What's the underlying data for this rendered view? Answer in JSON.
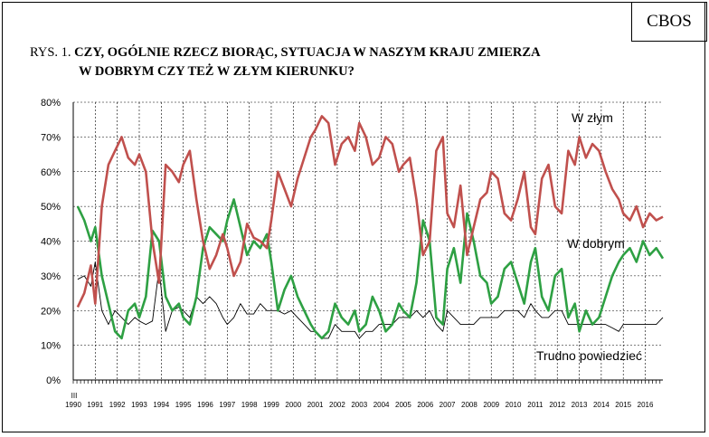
{
  "header": {
    "logo_text": "CBOS",
    "title_prefix": "RYS. 1.",
    "title_line1": "CZY, OGÓLNIE RZECZ BIORĄC, SYTUACJA W NASZYM KRAJU ZMIERZA",
    "title_line2": "W DOBRYM CZY TEŻ W ZŁYM KIERUNKU?"
  },
  "chart_data": {
    "type": "line",
    "title": "CZY, OGÓLNIE RZECZ BIORĄC, SYTUACJA W NASZYM KRAJU ZMIERZA W DOBRYM CZY TEŻ W ZŁYM KIERUNKU?",
    "xlabel": "",
    "ylabel": "",
    "ylim": [
      0,
      80
    ],
    "xlim": [
      1990,
      2016.8
    ],
    "grid": true,
    "y_ticks": [
      "0%",
      "10%",
      "20%",
      "30%",
      "40%",
      "50%",
      "60%",
      "70%",
      "80%"
    ],
    "x_start_label": "III",
    "x_ticks": [
      "1990",
      "1991",
      "1992",
      "1993",
      "1994",
      "1995",
      "1996",
      "1997",
      "1998",
      "1999",
      "2000",
      "2001",
      "2002",
      "2003",
      "2004",
      "2005",
      "2006",
      "2007",
      "2008",
      "2009",
      "2010",
      "2011",
      "2012",
      "2013",
      "2014",
      "2015",
      "2016"
    ],
    "colors": {
      "W złym": "#c0504d",
      "W dobrym": "#2ea043",
      "Trudno powiedzieć": "#000000"
    },
    "series": [
      {
        "name": "W złym",
        "x": [
          1990.2,
          1990.5,
          1990.8,
          1991.0,
          1991.3,
          1991.6,
          1991.9,
          1992.2,
          1992.5,
          1992.8,
          1993.0,
          1993.3,
          1993.6,
          1993.9,
          1994.2,
          1994.5,
          1994.8,
          1995.0,
          1995.3,
          1995.6,
          1995.9,
          1996.2,
          1996.5,
          1996.8,
          1997.0,
          1997.3,
          1997.6,
          1997.9,
          1998.2,
          1998.5,
          1998.8,
          1999.0,
          1999.3,
          1999.6,
          1999.9,
          2000.2,
          2000.5,
          2000.8,
          2001.0,
          2001.3,
          2001.6,
          2001.9,
          2002.2,
          2002.5,
          2002.8,
          2003.0,
          2003.3,
          2003.6,
          2003.9,
          2004.2,
          2004.5,
          2004.8,
          2005.0,
          2005.3,
          2005.6,
          2005.9,
          2006.2,
          2006.5,
          2006.8,
          2007.0,
          2007.3,
          2007.6,
          2007.9,
          2008.2,
          2008.5,
          2008.8,
          2009.0,
          2009.3,
          2009.6,
          2009.9,
          2010.2,
          2010.5,
          2010.8,
          2011.0,
          2011.3,
          2011.6,
          2011.9,
          2012.2,
          2012.5,
          2012.8,
          2013.0,
          2013.3,
          2013.6,
          2013.9,
          2014.2,
          2014.5,
          2014.8,
          2015.0,
          2015.3,
          2015.6,
          2015.9,
          2016.2,
          2016.5,
          2016.8
        ],
        "values": [
          21,
          25,
          33,
          22,
          50,
          62,
          66,
          70,
          64,
          62,
          65,
          60,
          40,
          28,
          62,
          60,
          57,
          62,
          66,
          52,
          40,
          32,
          36,
          42,
          38,
          30,
          34,
          45,
          41,
          40,
          38,
          46,
          60,
          55,
          50,
          58,
          64,
          70,
          72,
          76,
          74,
          62,
          68,
          70,
          66,
          74,
          70,
          62,
          64,
          70,
          68,
          60,
          62,
          64,
          52,
          36,
          40,
          66,
          70,
          48,
          44,
          56,
          36,
          44,
          52,
          54,
          60,
          58,
          48,
          46,
          52,
          60,
          44,
          42,
          58,
          62,
          50,
          48,
          66,
          62,
          70,
          64,
          68,
          66,
          60,
          55,
          52,
          48,
          46,
          50,
          44,
          48,
          46,
          47
        ]
      },
      {
        "name": "W dobrym",
        "x": [
          1990.2,
          1990.5,
          1990.8,
          1991.0,
          1991.3,
          1991.6,
          1991.9,
          1992.2,
          1992.5,
          1992.8,
          1993.0,
          1993.3,
          1993.6,
          1993.9,
          1994.2,
          1994.5,
          1994.8,
          1995.0,
          1995.3,
          1995.6,
          1995.9,
          1996.2,
          1996.5,
          1996.8,
          1997.0,
          1997.3,
          1997.6,
          1997.9,
          1998.2,
          1998.5,
          1998.8,
          1999.0,
          1999.3,
          1999.6,
          1999.9,
          2000.2,
          2000.5,
          2000.8,
          2001.0,
          2001.3,
          2001.6,
          2001.9,
          2002.2,
          2002.5,
          2002.8,
          2003.0,
          2003.3,
          2003.6,
          2003.9,
          2004.2,
          2004.5,
          2004.8,
          2005.0,
          2005.3,
          2005.6,
          2005.9,
          2006.2,
          2006.5,
          2006.8,
          2007.0,
          2007.3,
          2007.6,
          2007.9,
          2008.2,
          2008.5,
          2008.8,
          2009.0,
          2009.3,
          2009.6,
          2009.9,
          2010.2,
          2010.5,
          2010.8,
          2011.0,
          2011.3,
          2011.6,
          2011.9,
          2012.2,
          2012.5,
          2012.8,
          2013.0,
          2013.3,
          2013.6,
          2013.9,
          2014.2,
          2014.5,
          2014.8,
          2015.0,
          2015.3,
          2015.6,
          2015.9,
          2016.2,
          2016.5,
          2016.8
        ],
        "values": [
          50,
          46,
          40,
          44,
          30,
          22,
          14,
          12,
          20,
          22,
          18,
          24,
          43,
          40,
          24,
          20,
          22,
          18,
          16,
          24,
          38,
          44,
          42,
          40,
          46,
          52,
          44,
          36,
          40,
          38,
          42,
          34,
          20,
          26,
          30,
          24,
          20,
          16,
          14,
          12,
          14,
          22,
          18,
          16,
          20,
          14,
          16,
          24,
          20,
          14,
          16,
          22,
          20,
          18,
          28,
          46,
          40,
          18,
          16,
          32,
          38,
          28,
          48,
          40,
          30,
          28,
          22,
          24,
          32,
          34,
          28,
          22,
          34,
          38,
          24,
          20,
          30,
          32,
          18,
          22,
          14,
          20,
          16,
          18,
          24,
          30,
          34,
          36,
          38,
          34,
          40,
          36,
          38,
          35
        ]
      },
      {
        "name": "Trudno powiedzieć",
        "x": [
          1990.2,
          1990.5,
          1990.8,
          1991.0,
          1991.3,
          1991.6,
          1991.9,
          1992.2,
          1992.5,
          1992.8,
          1993.0,
          1993.3,
          1993.6,
          1993.9,
          1994.2,
          1994.5,
          1994.8,
          1995.0,
          1995.3,
          1995.6,
          1995.9,
          1996.2,
          1996.5,
          1996.8,
          1997.0,
          1997.3,
          1997.6,
          1997.9,
          1998.2,
          1998.5,
          1998.8,
          1999.0,
          1999.3,
          1999.6,
          1999.9,
          2000.2,
          2000.5,
          2000.8,
          2001.0,
          2001.3,
          2001.6,
          2001.9,
          2002.2,
          2002.5,
          2002.8,
          2003.0,
          2003.3,
          2003.6,
          2003.9,
          2004.2,
          2004.5,
          2004.8,
          2005.0,
          2005.3,
          2005.6,
          2005.9,
          2006.2,
          2006.5,
          2006.8,
          2007.0,
          2007.3,
          2007.6,
          2007.9,
          2008.2,
          2008.5,
          2008.8,
          2009.0,
          2009.3,
          2009.6,
          2009.9,
          2010.2,
          2010.5,
          2010.8,
          2011.0,
          2011.3,
          2011.6,
          2011.9,
          2012.2,
          2012.5,
          2012.8,
          2013.0,
          2013.3,
          2013.6,
          2013.9,
          2014.2,
          2014.5,
          2014.8,
          2015.0,
          2015.3,
          2015.6,
          2015.9,
          2016.2,
          2016.5,
          2016.8
        ],
        "values": [
          29,
          30,
          27,
          34,
          20,
          16,
          20,
          18,
          16,
          18,
          17,
          16,
          17,
          32,
          14,
          20,
          21,
          20,
          18,
          24,
          22,
          24,
          22,
          18,
          16,
          18,
          22,
          19,
          19,
          22,
          20,
          20,
          20,
          19,
          20,
          18,
          16,
          14,
          14,
          12,
          12,
          16,
          14,
          14,
          14,
          12,
          14,
          14,
          16,
          16,
          16,
          18,
          18,
          18,
          20,
          18,
          20,
          16,
          14,
          20,
          18,
          16,
          16,
          16,
          18,
          18,
          18,
          18,
          20,
          20,
          20,
          18,
          22,
          20,
          18,
          18,
          20,
          20,
          16,
          16,
          16,
          16,
          16,
          16,
          16,
          15,
          14,
          16,
          16,
          16,
          16,
          16,
          16,
          18
        ]
      }
    ]
  }
}
